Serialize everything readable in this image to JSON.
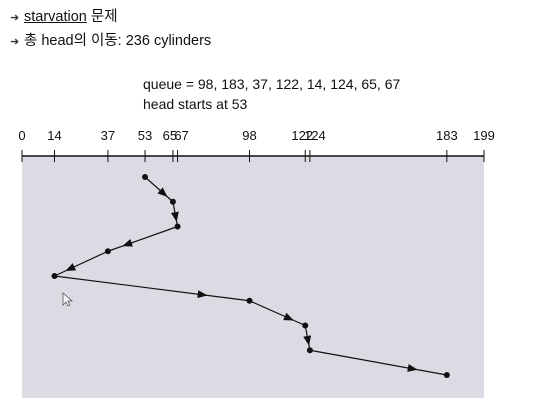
{
  "bullets": [
    {
      "icon": "arrow-bullet-icon",
      "term": "starvation",
      "rest": " 문제"
    },
    {
      "icon": "arrow-bullet-icon",
      "prefix": "총 head의 이동: ",
      "value": "236 cylinders"
    }
  ],
  "queue_line": "queue = 98, 183, 37, 122, 14, 124, 65, 67",
  "head_line": "head starts at 53",
  "chart_data": {
    "type": "line",
    "axis": {
      "min": 0,
      "max": 199
    },
    "tick_labels": [
      0,
      14,
      37,
      53,
      65,
      67,
      98,
      122,
      124,
      183,
      199
    ],
    "head_start": 53,
    "path": [
      53,
      65,
      67,
      37,
      14,
      98,
      122,
      124,
      183
    ],
    "colors": {
      "panel": "#dcdbe4",
      "line": "#111111"
    }
  }
}
